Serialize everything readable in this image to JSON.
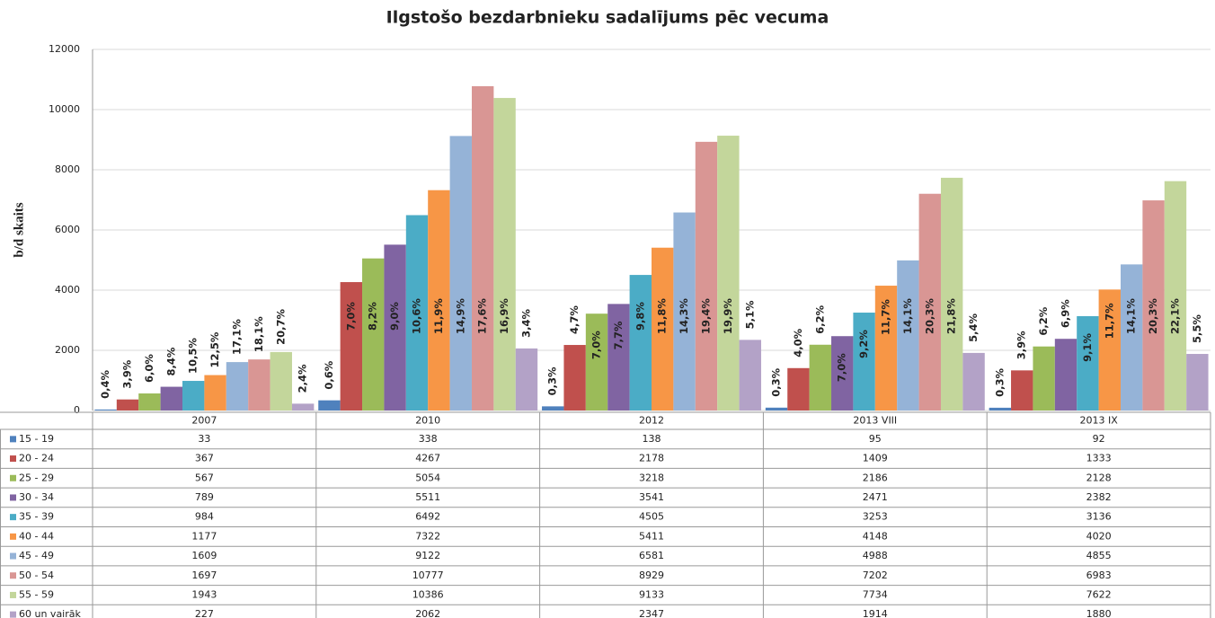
{
  "chart_data": {
    "type": "bar",
    "title": "Ilgstošo bezdarbnieku sadalījums pēc vecuma",
    "y_label": "b/d skaits",
    "categories": [
      "2007",
      "2010",
      "2012",
      "2013 VIII",
      "2013 IX"
    ],
    "ylim": [
      0,
      12000
    ],
    "yticks": [
      0,
      2000,
      4000,
      6000,
      8000,
      10000,
      12000
    ],
    "grid": true,
    "series": [
      {
        "name": "15 - 19",
        "color": "#4f81bd",
        "values": [
          33,
          338,
          138,
          95,
          92
        ],
        "share_labels": [
          "0,4%",
          "0,6%",
          "0,3%",
          "0,3%",
          "0,3%"
        ]
      },
      {
        "name": "20 - 24",
        "color": "#c0504d",
        "values": [
          367,
          4267,
          2178,
          1409,
          1333
        ],
        "share_labels": [
          "3,9%",
          "7,0%",
          "4,7%",
          "4,0%",
          "3,9%"
        ]
      },
      {
        "name": "25 - 29",
        "color": "#9bbb59",
        "values": [
          567,
          5054,
          3218,
          2186,
          2128
        ],
        "share_labels": [
          "6,0%",
          "8,2%",
          "7,0%",
          "6,2%",
          "6,2%"
        ]
      },
      {
        "name": "30 - 34",
        "color": "#8064a2",
        "values": [
          789,
          5511,
          3541,
          2471,
          2382
        ],
        "share_labels": [
          "8,4%",
          "9,0%",
          "7,7%",
          "7,0%",
          "6,9%"
        ]
      },
      {
        "name": "35 - 39",
        "color": "#4bacc6",
        "values": [
          984,
          6492,
          4505,
          3253,
          3136
        ],
        "share_labels": [
          "10,5%",
          "10,6%",
          "9,8%",
          "9,2%",
          "9,1%"
        ]
      },
      {
        "name": "40 - 44",
        "color": "#f79646",
        "values": [
          1177,
          7322,
          5411,
          4148,
          4020
        ],
        "share_labels": [
          "12,5%",
          "11,9%",
          "11,8%",
          "11,7%",
          "11,7%"
        ]
      },
      {
        "name": "45 - 49",
        "color": "#95b3d7",
        "values": [
          1609,
          9122,
          6581,
          4988,
          4855
        ],
        "share_labels": [
          "17,1%",
          "14,9%",
          "14,3%",
          "14,1%",
          "14,1%"
        ]
      },
      {
        "name": "50 - 54",
        "color": "#d99694",
        "values": [
          1697,
          10777,
          8929,
          7202,
          6983
        ],
        "share_labels": [
          "18,1%",
          "17,6%",
          "19,4%",
          "20,3%",
          "20,3%"
        ]
      },
      {
        "name": "55 - 59",
        "color": "#c3d69b",
        "values": [
          1943,
          10386,
          9133,
          7734,
          7622
        ],
        "share_labels": [
          "20,7%",
          "16,9%",
          "19,9%",
          "21,8%",
          "22,1%"
        ]
      },
      {
        "name": "60 un vairāk",
        "color": "#b3a2c7",
        "values": [
          227,
          2062,
          2347,
          1914,
          1880
        ],
        "share_labels": [
          "2,4%",
          "3,4%",
          "5,1%",
          "5,4%",
          "5,5%"
        ]
      }
    ]
  }
}
